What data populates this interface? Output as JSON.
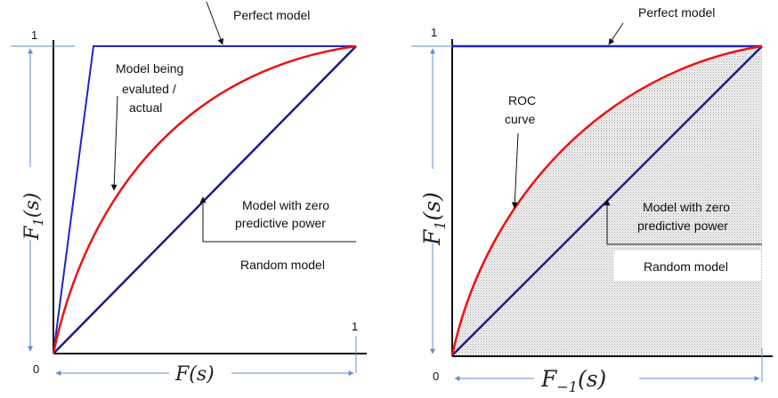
{
  "colors": {
    "perfect": "#2323c8",
    "random": "#1c1c8c",
    "model": "#ee1111",
    "measure": "#5f8fc8",
    "axis": "#111111",
    "shade": "#e6e6e6"
  },
  "left_panel": {
    "perfect_label": "Perfect model",
    "model_label_1": "Model being",
    "model_label_2": "evaluted /",
    "model_label_3": "actual",
    "zero_power_1": "Model with zero",
    "zero_power_2": "predictive power",
    "random_label": "Random model",
    "y_one": "1",
    "x_one": "1",
    "origin": "0",
    "y_axis_math": "F",
    "y_axis_math_sub": "1",
    "y_axis_math_arg": "(s)",
    "x_axis_math": "F(s)"
  },
  "right_panel": {
    "perfect_label": "Perfect model",
    "roc_label_1": "ROC",
    "roc_label_2": "curve",
    "zero_power_1": "Model with zero",
    "zero_power_2": "predictive power",
    "random_label": "Random model",
    "y_one": "1",
    "origin": "0",
    "y_axis_math": "F",
    "y_axis_math_sub": "1",
    "y_axis_math_arg": "(s)",
    "x_axis_math": "F",
    "x_axis_math_sub": "−1",
    "x_axis_math_arg": "(s)"
  }
}
